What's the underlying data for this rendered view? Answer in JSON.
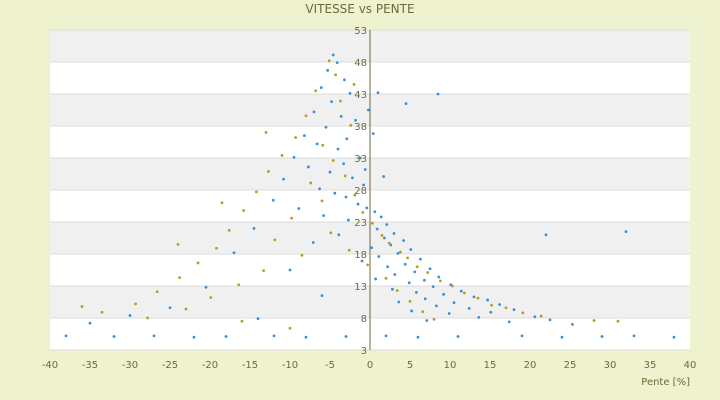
{
  "chart_data": {
    "type": "scatter",
    "title": "VITESSE vs PENTE",
    "xlabel": "Pente [%]",
    "ylabel": "",
    "xlim": [
      -40,
      40
    ],
    "ylim": [
      3,
      53
    ],
    "x_ticks": [
      -40,
      -35,
      -30,
      -25,
      -20,
      -15,
      -10,
      -5,
      0,
      5,
      10,
      15,
      20,
      25,
      30,
      35,
      40
    ],
    "y_ticks": [
      3,
      8,
      13,
      18,
      23,
      28,
      33,
      38,
      43,
      48,
      53
    ],
    "grid": true,
    "legend": "none",
    "colors": {
      "series_1": "#3a8fd6",
      "series_2": "#b0a020",
      "plot_bg": "#ffffff",
      "band": "#f0f0f0",
      "axis": "#6b6b3a"
    },
    "series": [
      {
        "values_desc": "estimated point cloud",
        "points": [
          [
            -4.6,
            49.1
          ],
          [
            -4.1,
            47.9
          ],
          [
            -5.3,
            46.7
          ],
          [
            -3.2,
            45.2
          ],
          [
            -6.1,
            44.0
          ],
          [
            -2.5,
            43.1
          ],
          [
            -4.8,
            41.8
          ],
          [
            -7.0,
            40.2
          ],
          [
            -3.6,
            39.5
          ],
          [
            -1.8,
            38.9
          ],
          [
            -5.5,
            37.8
          ],
          [
            -8.2,
            36.5
          ],
          [
            -2.9,
            36.0
          ],
          [
            -6.6,
            35.2
          ],
          [
            -4.0,
            34.4
          ],
          [
            -9.5,
            33.1
          ],
          [
            -1.2,
            33.0
          ],
          [
            -3.3,
            32.1
          ],
          [
            -7.7,
            31.6
          ],
          [
            -5.0,
            30.8
          ],
          [
            -10.8,
            29.7
          ],
          [
            -2.2,
            29.9
          ],
          [
            -0.8,
            28.8
          ],
          [
            -6.3,
            28.2
          ],
          [
            -4.4,
            27.5
          ],
          [
            -12.1,
            26.4
          ],
          [
            -3.0,
            26.9
          ],
          [
            -1.5,
            25.8
          ],
          [
            -8.9,
            25.1
          ],
          [
            -0.4,
            25.2
          ],
          [
            0.6,
            24.6
          ],
          [
            -5.8,
            24.0
          ],
          [
            1.4,
            23.8
          ],
          [
            -2.7,
            23.3
          ],
          [
            2.1,
            22.6
          ],
          [
            -14.5,
            22.0
          ],
          [
            0.9,
            21.9
          ],
          [
            3.0,
            21.2
          ],
          [
            -3.9,
            21.0
          ],
          [
            1.8,
            20.5
          ],
          [
            4.2,
            20.1
          ],
          [
            -7.1,
            19.8
          ],
          [
            2.6,
            19.4
          ],
          [
            0.2,
            19.0
          ],
          [
            5.1,
            18.7
          ],
          [
            -17.0,
            18.2
          ],
          [
            3.5,
            18.1
          ],
          [
            1.1,
            17.6
          ],
          [
            6.3,
            17.2
          ],
          [
            -1.0,
            16.9
          ],
          [
            4.4,
            16.4
          ],
          [
            2.2,
            16.0
          ],
          [
            7.5,
            15.7
          ],
          [
            -10.0,
            15.5
          ],
          [
            5.6,
            15.2
          ],
          [
            3.1,
            14.8
          ],
          [
            8.6,
            14.4
          ],
          [
            0.7,
            14.1
          ],
          [
            6.8,
            13.9
          ],
          [
            4.9,
            13.5
          ],
          [
            10.1,
            13.2
          ],
          [
            -20.5,
            12.8
          ],
          [
            7.9,
            12.9
          ],
          [
            2.8,
            12.5
          ],
          [
            11.4,
            12.2
          ],
          [
            5.8,
            12.0
          ],
          [
            9.2,
            11.7
          ],
          [
            -6.0,
            11.5
          ],
          [
            13.0,
            11.3
          ],
          [
            6.9,
            11.0
          ],
          [
            14.7,
            10.8
          ],
          [
            3.6,
            10.5
          ],
          [
            10.5,
            10.4
          ],
          [
            16.2,
            10.1
          ],
          [
            8.3,
            9.9
          ],
          [
            -25.0,
            9.6
          ],
          [
            12.4,
            9.5
          ],
          [
            18.0,
            9.3
          ],
          [
            5.2,
            9.1
          ],
          [
            15.1,
            8.9
          ],
          [
            9.9,
            8.7
          ],
          [
            -30.0,
            8.4
          ],
          [
            20.6,
            8.2
          ],
          [
            13.6,
            8.1
          ],
          [
            -14.0,
            7.9
          ],
          [
            22.5,
            7.7
          ],
          [
            7.1,
            7.6
          ],
          [
            17.4,
            7.4
          ],
          [
            -35.0,
            7.2
          ],
          [
            25.3,
            7.0
          ],
          [
            -38.0,
            5.2
          ],
          [
            -32.0,
            5.1
          ],
          [
            -27.0,
            5.2
          ],
          [
            -22.0,
            5.0
          ],
          [
            -18.0,
            5.1
          ],
          [
            -12.0,
            5.2
          ],
          [
            -8.0,
            5.0
          ],
          [
            -3.0,
            5.1
          ],
          [
            2.0,
            5.2
          ],
          [
            6.0,
            5.0
          ],
          [
            11.0,
            5.1
          ],
          [
            19.0,
            5.2
          ],
          [
            24.0,
            5.0
          ],
          [
            29.0,
            5.1
          ],
          [
            33.0,
            5.2
          ],
          [
            38.0,
            5.0
          ],
          [
            8.5,
            43.0
          ],
          [
            4.5,
            41.5
          ],
          [
            32.0,
            21.5
          ],
          [
            22.0,
            21.0
          ],
          [
            1.0,
            43.2
          ],
          [
            -0.2,
            40.5
          ],
          [
            0.4,
            36.8
          ],
          [
            -0.6,
            31.2
          ],
          [
            1.7,
            30.1
          ]
        ]
      },
      {
        "values_desc": "estimated point cloud",
        "points": [
          [
            -5.1,
            48.2
          ],
          [
            -4.3,
            46.0
          ],
          [
            -6.8,
            43.5
          ],
          [
            -3.7,
            41.9
          ],
          [
            -8.0,
            39.6
          ],
          [
            -2.4,
            38.1
          ],
          [
            -9.3,
            36.2
          ],
          [
            -5.9,
            35.0
          ],
          [
            -11.0,
            33.4
          ],
          [
            -4.6,
            32.6
          ],
          [
            -12.7,
            30.9
          ],
          [
            -3.1,
            30.2
          ],
          [
            -7.4,
            29.1
          ],
          [
            -14.2,
            27.7
          ],
          [
            -1.9,
            27.2
          ],
          [
            -6.0,
            26.3
          ],
          [
            -15.8,
            24.8
          ],
          [
            -0.9,
            24.5
          ],
          [
            -9.8,
            23.6
          ],
          [
            0.3,
            22.8
          ],
          [
            -17.6,
            21.7
          ],
          [
            -4.9,
            21.3
          ],
          [
            1.5,
            20.9
          ],
          [
            -11.9,
            20.2
          ],
          [
            2.4,
            19.7
          ],
          [
            -19.2,
            18.9
          ],
          [
            -2.6,
            18.6
          ],
          [
            3.8,
            18.3
          ],
          [
            -8.5,
            17.8
          ],
          [
            4.7,
            17.4
          ],
          [
            -21.5,
            16.6
          ],
          [
            -0.3,
            16.3
          ],
          [
            5.9,
            16.0
          ],
          [
            -13.3,
            15.4
          ],
          [
            7.2,
            15.1
          ],
          [
            -23.8,
            14.3
          ],
          [
            2.0,
            14.2
          ],
          [
            8.8,
            13.8
          ],
          [
            -16.4,
            13.2
          ],
          [
            10.3,
            13.0
          ],
          [
            -26.6,
            12.1
          ],
          [
            3.4,
            12.3
          ],
          [
            11.8,
            11.9
          ],
          [
            -19.9,
            11.2
          ],
          [
            13.5,
            11.1
          ],
          [
            -29.3,
            10.2
          ],
          [
            5.0,
            10.6
          ],
          [
            15.2,
            10.0
          ],
          [
            -23.0,
            9.4
          ],
          [
            17.0,
            9.6
          ],
          [
            -33.5,
            8.9
          ],
          [
            6.6,
            9.0
          ],
          [
            19.1,
            8.8
          ],
          [
            -27.8,
            8.0
          ],
          [
            21.4,
            8.3
          ],
          [
            -16.0,
            7.5
          ],
          [
            8.0,
            7.8
          ],
          [
            28.0,
            7.6
          ],
          [
            31.0,
            7.5
          ],
          [
            -10.0,
            6.4
          ],
          [
            -36.0,
            9.8
          ],
          [
            -24.0,
            19.5
          ],
          [
            -18.5,
            26.0
          ],
          [
            -13.0,
            37.0
          ],
          [
            -2.0,
            44.5
          ]
        ]
      }
    ]
  }
}
